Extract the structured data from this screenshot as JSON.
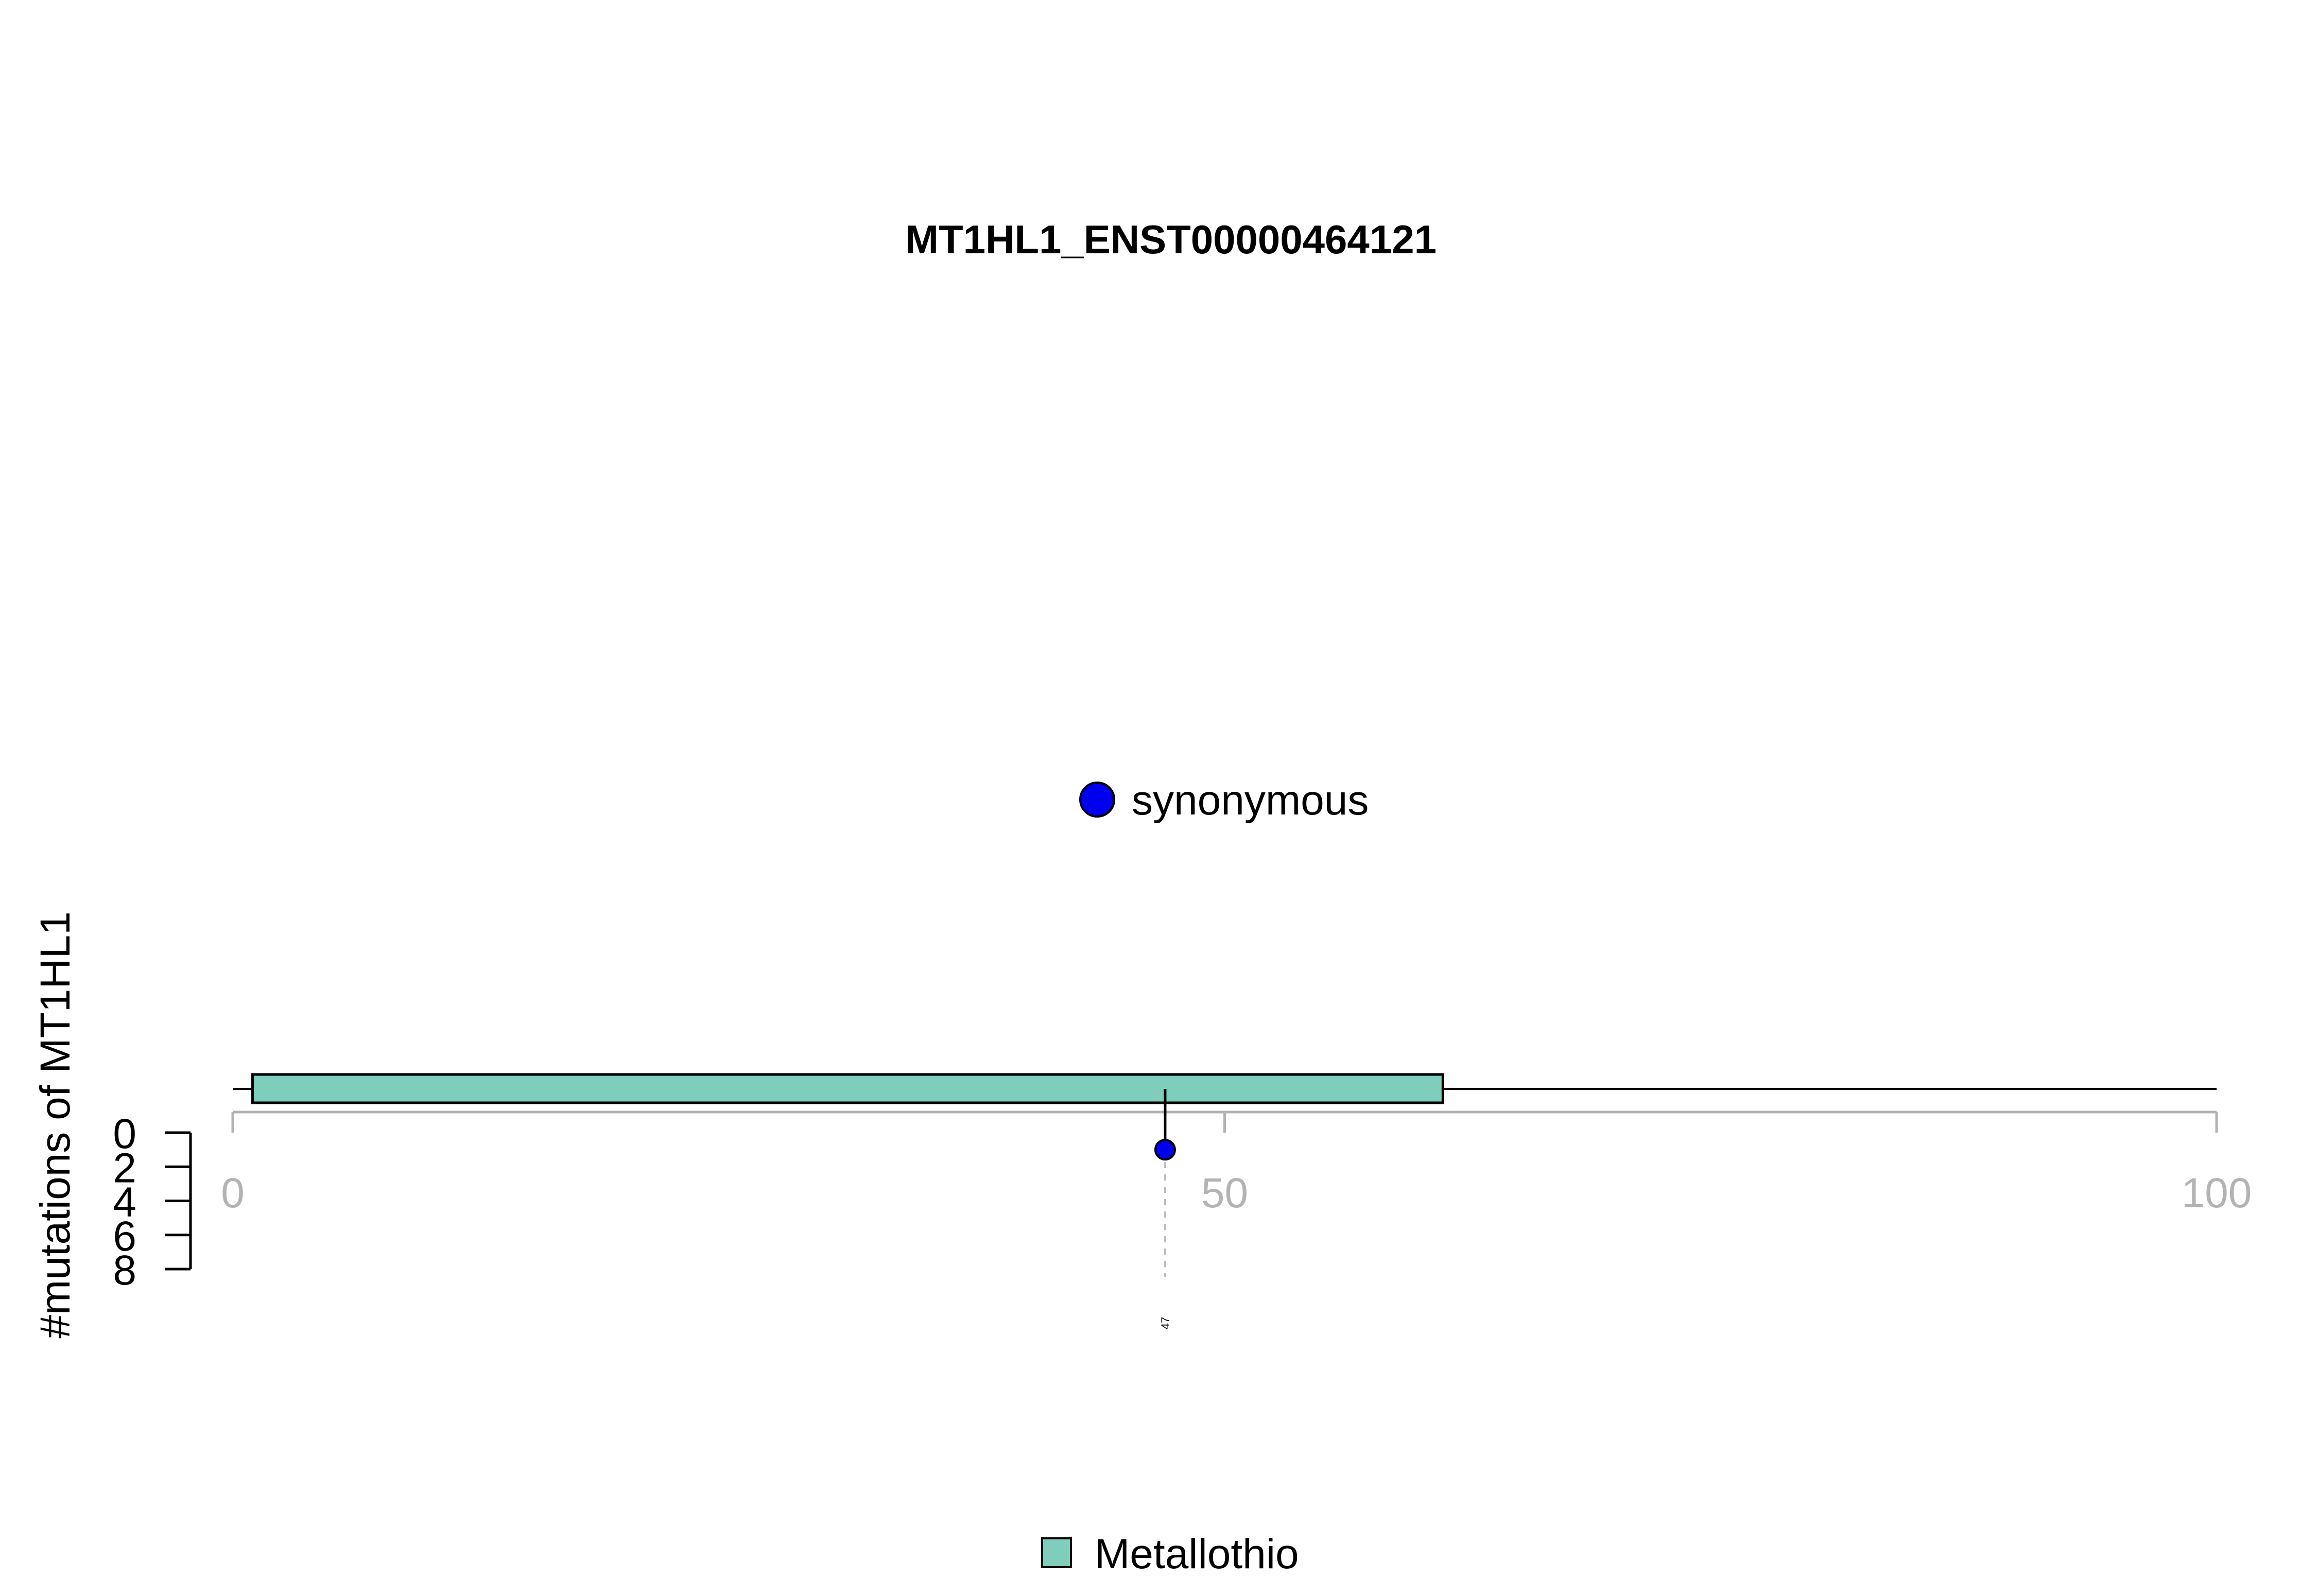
{
  "chart_data": {
    "type": "lollipop",
    "title": "MT1HL1_ENST00000464121",
    "ylabel": "#mutations of MT1HL1",
    "xlim": [
      0,
      100
    ],
    "x_ticks": [
      0,
      50,
      100
    ],
    "ylim": [
      0,
      8
    ],
    "y_ticks": [
      0,
      2,
      4,
      6,
      8
    ],
    "protein_length": 100,
    "domains": [
      {
        "name": "Metallothio",
        "start": 1,
        "end": 61,
        "color": "#7fcdbb"
      }
    ],
    "mutations": [
      {
        "position": 47,
        "count": 1,
        "type": "synonymous",
        "color": "#0000ee",
        "label": "47"
      }
    ],
    "legend_types": [
      {
        "label": "synonymous",
        "color": "#0000ee"
      }
    ],
    "legend_domains": [
      {
        "label": "Metallothio",
        "color": "#7fcdbb"
      }
    ],
    "grid": false
  }
}
